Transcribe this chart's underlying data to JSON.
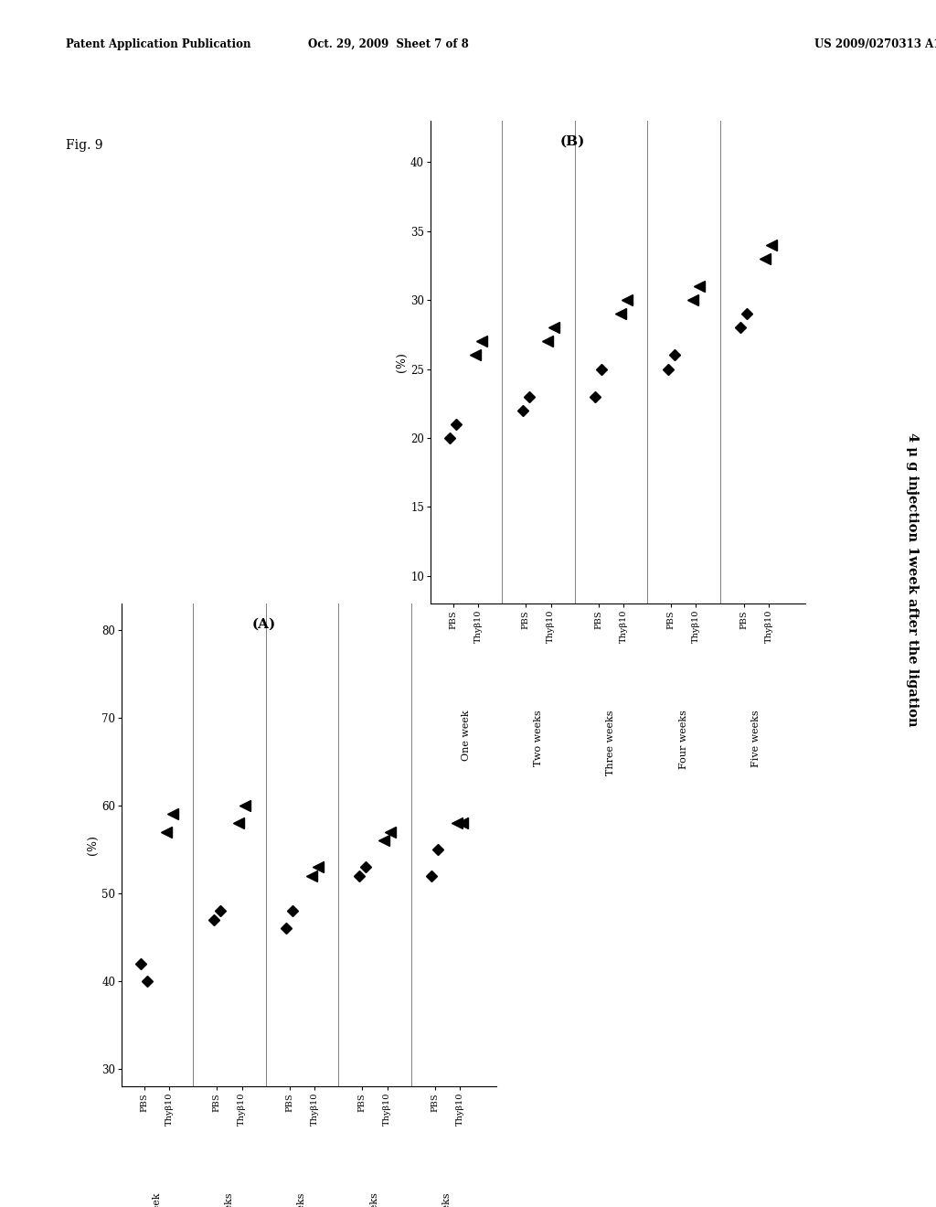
{
  "header_left": "Patent Application Publication",
  "header_center": "Oct. 29, 2009  Sheet 7 of 8",
  "header_right": "US 2009/0270313 A1",
  "fig_label": "Fig. 9",
  "right_annotation": "4 μ g injection 1week after the ligation",
  "panel_A": {
    "label": "(A)",
    "ylabel": "(%)",
    "yticks": [
      30,
      40,
      50,
      60,
      70,
      80
    ],
    "ylim": [
      28,
      83
    ],
    "groups": [
      "One week",
      "Two weeks",
      "Three weeks",
      "Four weeks",
      "Five weeks"
    ],
    "pbs_vals": [
      42,
      40,
      47,
      48,
      46,
      48,
      52,
      53,
      52,
      55
    ],
    "thy_vals": [
      57,
      59,
      58,
      60,
      52,
      53,
      56,
      57,
      58,
      58
    ]
  },
  "panel_B": {
    "label": "(B)",
    "ylabel": "(%)",
    "yticks": [
      10,
      15,
      20,
      25,
      30,
      35,
      40
    ],
    "ylim": [
      8,
      43
    ],
    "groups": [
      "One week",
      "Two weeks",
      "Three weeks",
      "Four weeks",
      "Five weeks"
    ],
    "pbs_vals": [
      20,
      21,
      22,
      23,
      23,
      25,
      25,
      26,
      28,
      29
    ],
    "thy_vals": [
      26,
      27,
      27,
      28,
      29,
      30,
      30,
      31,
      33,
      34
    ]
  },
  "background_color": "#ffffff",
  "marker_color": "#000000"
}
